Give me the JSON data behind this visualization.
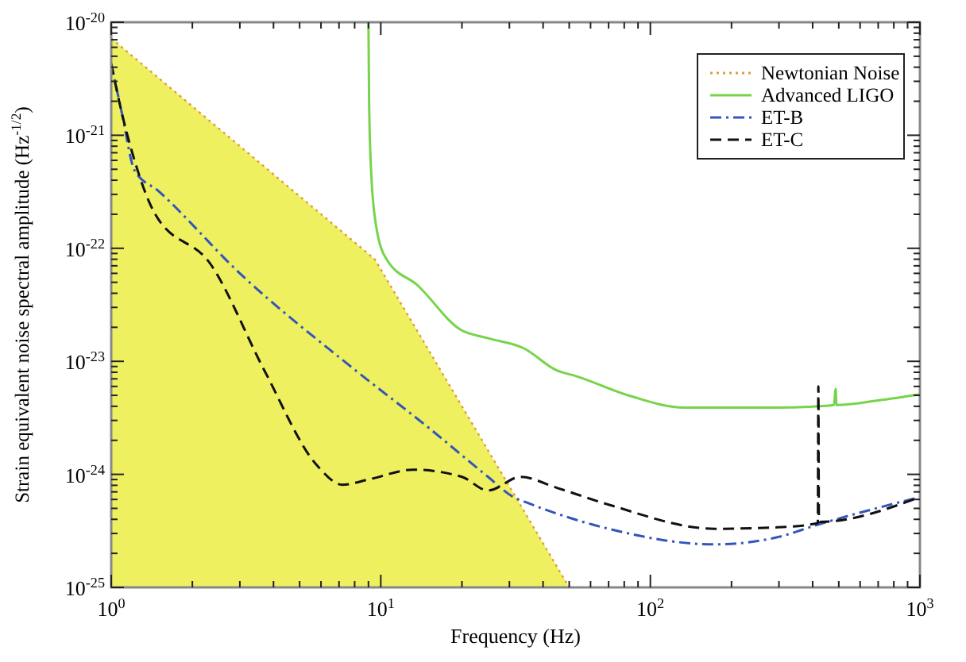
{
  "chart_data": {
    "type": "line",
    "log": "xy",
    "xlabel": "Frequency (Hz)",
    "ylabel": "Strain equivalent noise spectral amplitude (Hz$^{-1/2}$)",
    "xlim": [
      1,
      1000
    ],
    "ylim": [
      1e-25,
      1e-20
    ],
    "xticks": [
      {
        "value": 1,
        "label": "10$^{0}$"
      },
      {
        "value": 10,
        "label": "10$^{1}$"
      },
      {
        "value": 100,
        "label": "10$^{2}$"
      },
      {
        "value": 1000,
        "label": "10$^{3}$"
      }
    ],
    "yticks": [
      {
        "value": 1e-25,
        "label": "10$^{-25}$"
      },
      {
        "value": 1e-24,
        "label": "10$^{-24}$"
      },
      {
        "value": 1e-23,
        "label": "10$^{-23}$"
      },
      {
        "value": 1e-22,
        "label": "10$^{-22}$"
      },
      {
        "value": 1e-21,
        "label": "10$^{-21}$"
      },
      {
        "value": 1e-20,
        "label": "10$^{-20}$"
      }
    ],
    "grid": false,
    "legend": "top right",
    "series": [
      {
        "name": "Newtonian Noise",
        "type": "area",
        "color": "#eef060",
        "line_style": "dotted",
        "x": [
          1,
          9.5,
          50
        ],
        "values": [
          7.2e-21,
          8e-23,
          1e-25
        ]
      },
      {
        "name": "Advanced LIGO",
        "type": "line",
        "color": "#77d44a",
        "line_style": "solid",
        "x": [
          9,
          9.05,
          9.2,
          9.6,
          10.5,
          13.7,
          19.8,
          25,
          34,
          45,
          53,
          85,
          133,
          174,
          300,
          420,
          480,
          487,
          490,
          700,
          1000
        ],
        "values": [
          1e-20,
          2e-21,
          5e-22,
          1.6e-22,
          8e-23,
          4.7e-23,
          1.9e-23,
          1.6e-23,
          1.3e-23,
          8.3e-24,
          7.4e-24,
          4.9e-24,
          3.9e-24,
          3.9e-24,
          3.9e-24,
          4e-24,
          4.1e-24,
          5.7e-24,
          4.1e-24,
          4.5e-24,
          5.1e-24
        ]
      },
      {
        "name": "ET-B",
        "type": "line",
        "color": "#3355bb",
        "line_style": "dashdot",
        "x": [
          1,
          1.1,
          1.22,
          1.5,
          3,
          7.6,
          15,
          25,
          31,
          35,
          70,
          174,
          300,
          420,
          1000
        ],
        "values": [
          4.3e-21,
          1.5e-21,
          4.9e-22,
          3.2e-22,
          6e-23,
          9.3e-24,
          2.6e-24,
          9.5e-25,
          6.3e-25,
          5.6e-25,
          3.3e-25,
          2.4e-25,
          2.8e-25,
          3.6e-25,
          6.3e-25
        ]
      },
      {
        "name": "ET-C",
        "type": "line",
        "color": "#111111",
        "line_style": "dashed",
        "x": [
          1,
          1.1,
          1.22,
          1.44,
          2.35,
          3.7,
          5.8,
          7.2,
          9,
          13.2,
          20,
          25,
          33,
          45,
          70,
          174,
          297,
          418,
          420,
          422,
          1000
        ],
        "values": [
          4.3e-21,
          1.5e-21,
          6e-22,
          2.1e-22,
          7.1e-23,
          8.3e-24,
          1.2e-24,
          8.1e-25,
          9e-25,
          1.1e-24,
          9.5e-25,
          7.2e-25,
          9.5e-25,
          7.6e-25,
          5.4e-25,
          3.3e-25,
          3.4e-25,
          3.7e-25,
          6e-24,
          3.8e-25,
          6.3e-25
        ]
      }
    ]
  }
}
